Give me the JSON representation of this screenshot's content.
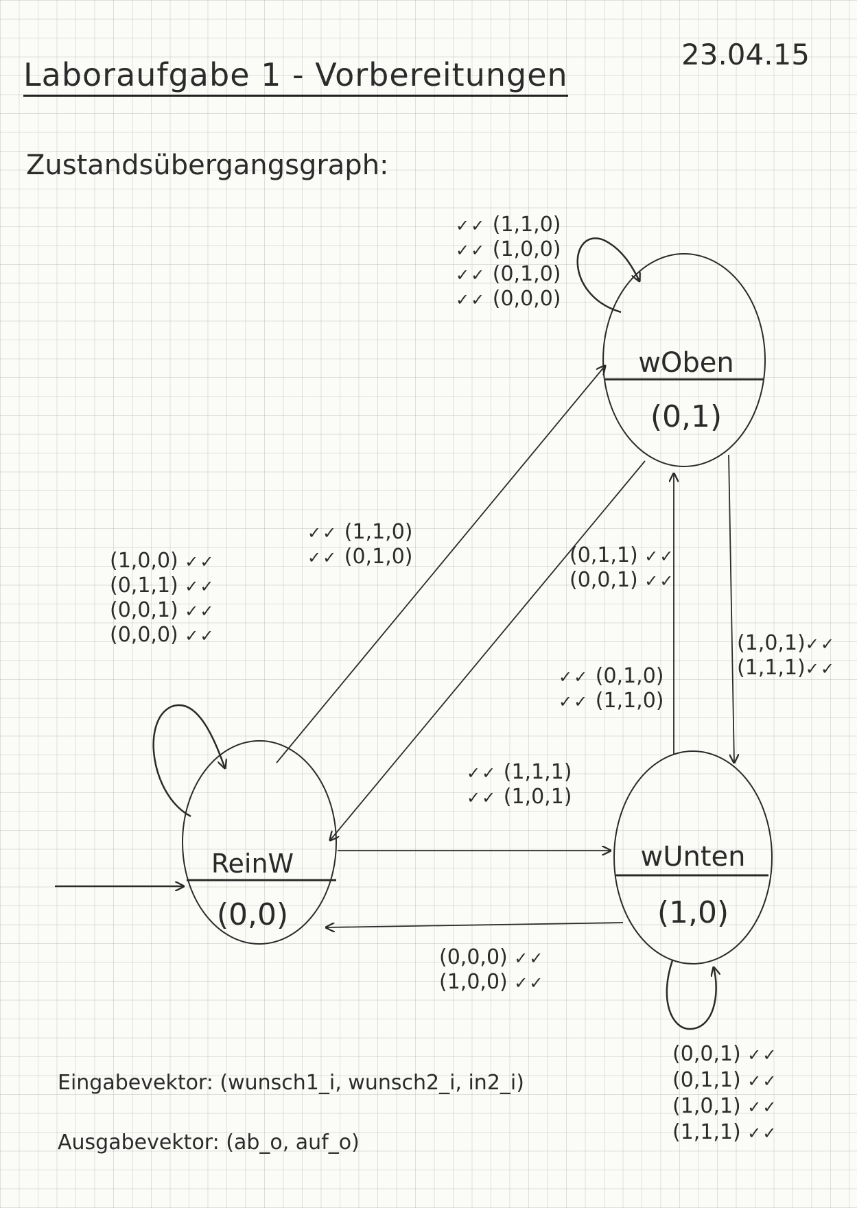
{
  "header": {
    "title": "Laboraufgabe 1 - Vorbereitungen",
    "date": "23.04.15",
    "subtitle": "Zustandsübergangsgraph:"
  },
  "states": {
    "woben": {
      "name": "wOben",
      "output": "(0,1)"
    },
    "reinw": {
      "name": "ReinW",
      "output": "(0,0)"
    },
    "wunten": {
      "name": "wUnten",
      "output": "(1,0)"
    }
  },
  "check": "✓✓",
  "transitions": {
    "woben_self": [
      "(1,1,0)",
      "(1,0,0)",
      "(0,1,0)",
      "(0,0,0)"
    ],
    "reinw_self": [
      "(1,0,0)",
      "(0,1,1)",
      "(0,0,1)",
      "(0,0,0)"
    ],
    "reinw_to_woben": [
      "(1,1,0)",
      "(0,1,0)"
    ],
    "woben_to_reinw": [
      "(0,1,1)",
      "(0,0,1)"
    ],
    "woben_to_wunten": [
      "(1,0,1)",
      "(1,1,1)"
    ],
    "wunten_to_woben": [
      "(0,1,0)",
      "(1,1,0)"
    ],
    "reinw_to_wunten": [
      "(1,1,1)",
      "(1,0,1)"
    ],
    "wunten_to_reinw": [
      "(0,0,0)",
      "(1,0,0)"
    ],
    "wunten_self": [
      "(0,0,1)",
      "(0,1,1)",
      "(1,0,1)",
      "(1,1,1)"
    ]
  },
  "vectors": {
    "input": "Eingabevektor: (wunsch1_i, wunsch2_i, in2_i)",
    "output": "Ausgabevektor: (ab_o, auf_o)"
  }
}
